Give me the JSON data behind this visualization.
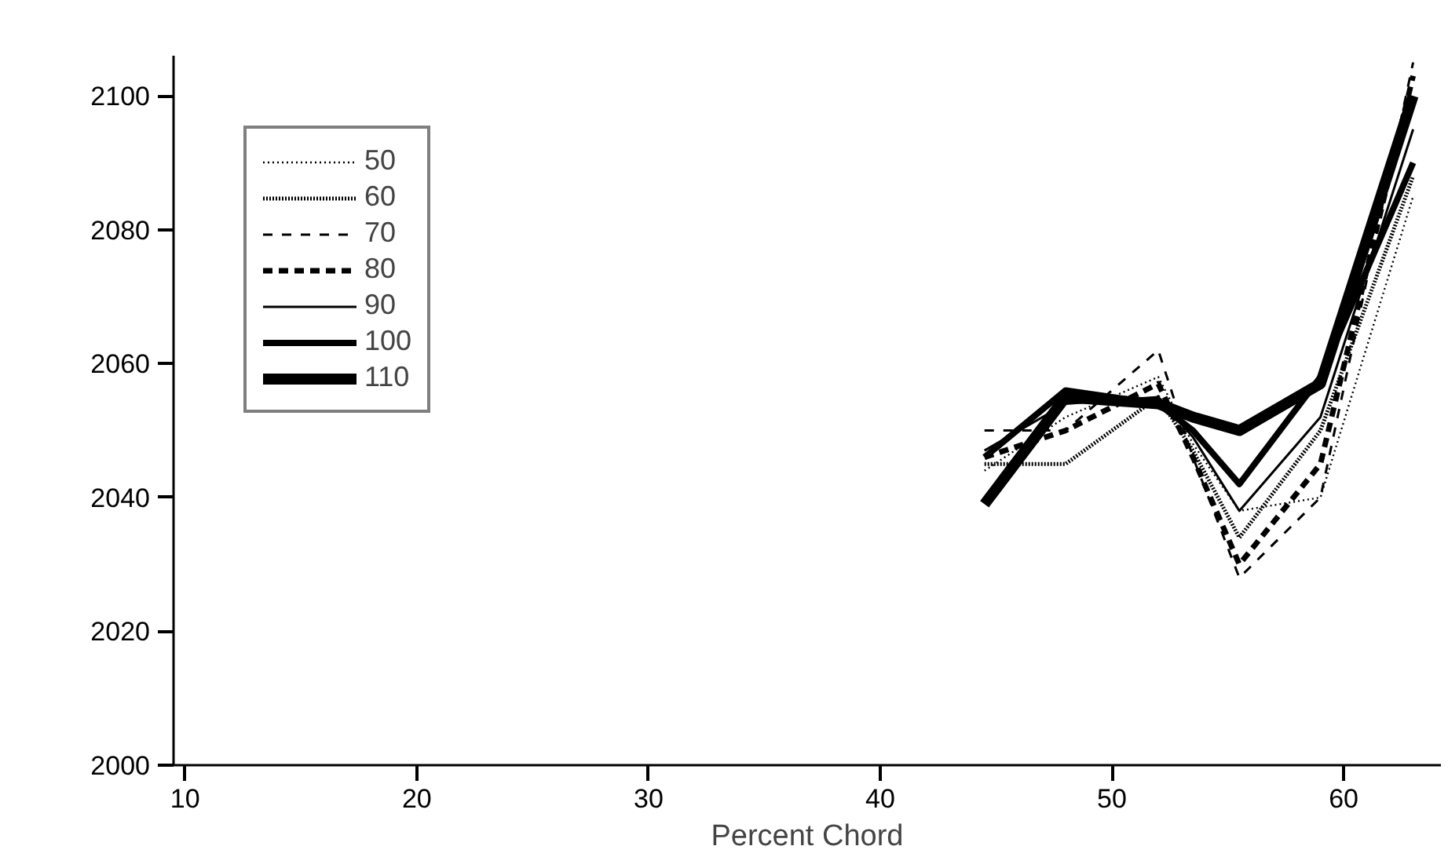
{
  "chart_data": {
    "type": "line",
    "xlabel": "Percent Chord",
    "xlim": [
      9.5,
      64.2
    ],
    "ylim": [
      2000,
      2106
    ],
    "xticks": [
      10,
      20,
      30,
      40,
      50,
      60
    ],
    "yticks": [
      2000,
      2020,
      2040,
      2060,
      2080,
      2100
    ],
    "grid": false,
    "legend": "top left",
    "marker": "none",
    "x": [
      44.5,
      48,
      52,
      53.5,
      55.5,
      59,
      63
    ],
    "series": [
      {
        "name": "50",
        "color": "#000000",
        "line_style": "dotted",
        "values": [
          2044,
          2052,
          2058,
          2048,
          2038,
          2040,
          2085
        ]
      },
      {
        "name": "60",
        "color": "#000000",
        "line_style": "dotted",
        "values": [
          2045,
          2045,
          2055,
          2047,
          2034,
          2050,
          2088
        ]
      },
      {
        "name": "70",
        "color": "#000000",
        "line_style": "dashed",
        "values": [
          2050,
          2050,
          2062,
          2046,
          2028,
          2040,
          2105
        ]
      },
      {
        "name": "80",
        "color": "#000000",
        "line_style": "dashed",
        "values": [
          2046,
          2050,
          2057,
          2046,
          2030,
          2045,
          2103
        ]
      },
      {
        "name": "90",
        "color": "#000000",
        "line_style": "solid",
        "values": [
          2047,
          2054,
          2055,
          2049,
          2038,
          2052,
          2095
        ]
      },
      {
        "name": "100",
        "color": "#000000",
        "line_style": "solid",
        "values": [
          2046,
          2056,
          2054,
          2050,
          2042,
          2058,
          2090
        ]
      },
      {
        "name": "110",
        "color": "#000000",
        "line_style": "solid",
        "values": [
          2039,
          2055,
          2054,
          2052,
          2050,
          2057,
          2100
        ]
      }
    ]
  }
}
